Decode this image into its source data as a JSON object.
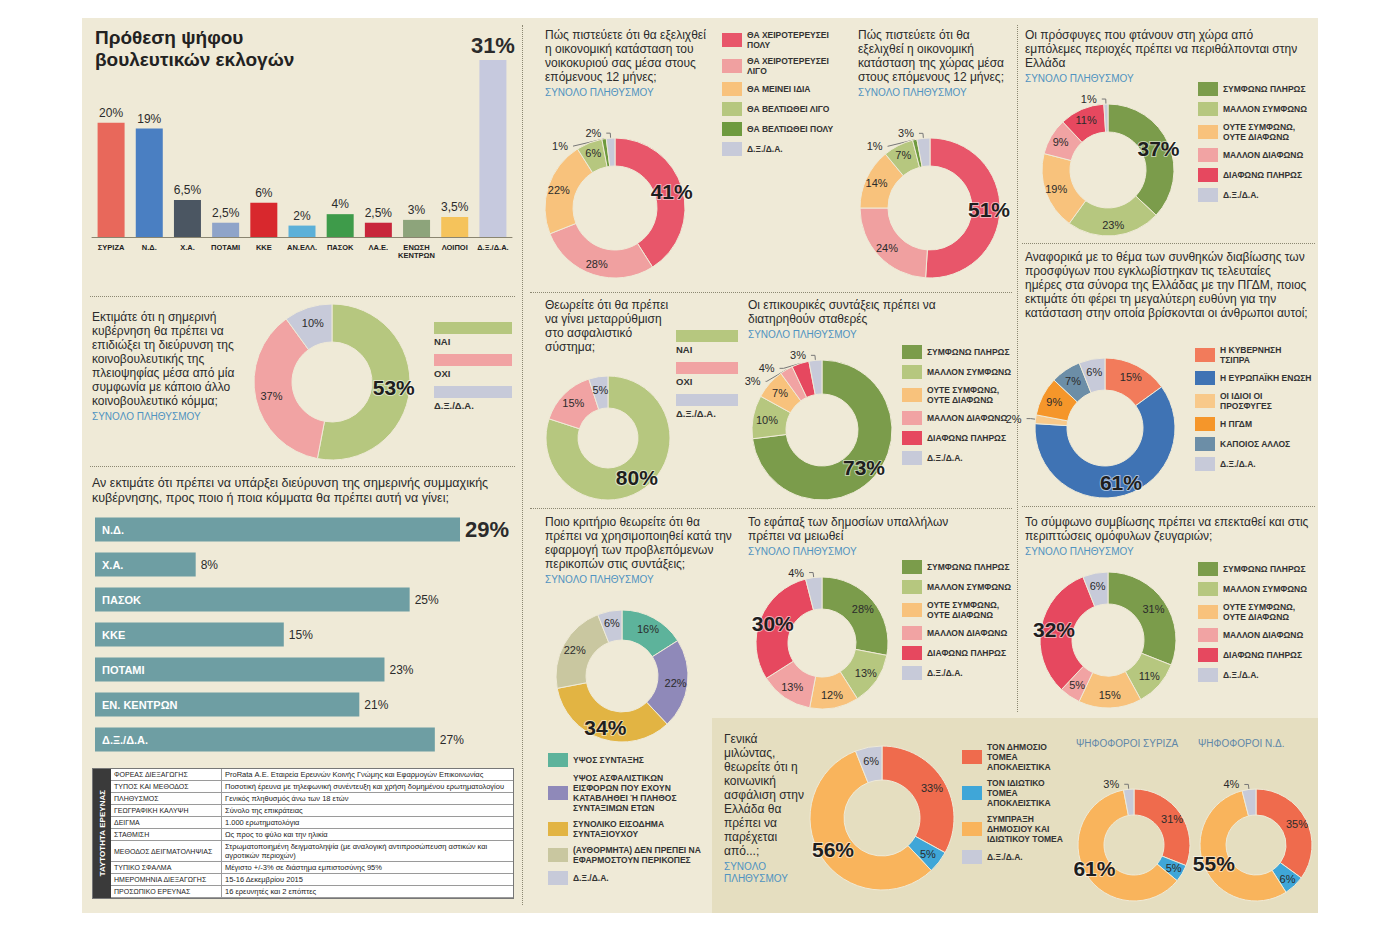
{
  "chart_data": [
    {
      "type": "bar",
      "title": "Πρόθεση ψήφου βουλευτικών εκλογών",
      "categories": [
        "ΣΥΡΙΖΑ",
        "Ν.Δ.",
        "Χ.Α.",
        "ΠΟΤΑΜΙ",
        "ΚΚΕ",
        "ΑΝ.ΕΛΛ.",
        "ΠΑΣΟΚ",
        "ΛΑ.Ε.",
        "ΕΝΩΣΗ ΚΕΝΤΡΩΝ",
        "ΛΟΙΠΟΙ",
        "Δ.Ξ./Δ.Α."
      ],
      "values": [
        20,
        19,
        6.5,
        2.5,
        6,
        2,
        4,
        2.5,
        3,
        3.5,
        31
      ],
      "value_labels": [
        "20%",
        "19%",
        "6,5%",
        "2,5%",
        "6%",
        "2%",
        "4%",
        "2,5%",
        "3%",
        "3,5%",
        "31%"
      ],
      "colors": [
        "#e8685b",
        "#4a7fc2",
        "#4b5662",
        "#8fa4c9",
        "#d8282d",
        "#5bb0d8",
        "#3e9b4a",
        "#c8263b",
        "#8da47b",
        "#f5c35b",
        "#c6c9de"
      ],
      "ylim": [
        0,
        31
      ],
      "tick_labels": "x",
      "data_labels": true
    },
    {
      "type": "pie",
      "title": "Εκτιμάτε ότι η σημερινή κυβέρνηση θα πρέπει να επιδιώξει τη διεύρυνση της κοινοβουλευτικής της πλειοψηφίας μέσα από μία συμφωνία με κάποιο άλλο κοινοβουλευτικό κόμμα;",
      "subtitle": "ΣΥΝΟΛΟ ΠΛΗΘΥΣΜΟΥ",
      "categories": [
        "ΝΑΙ",
        "ΟΧΙ",
        "Δ.Ξ./Δ.Α."
      ],
      "values": [
        53,
        37,
        10
      ],
      "value_labels": [
        "53%",
        "37%",
        "10%"
      ],
      "colors": [
        "#b6c77f",
        "#f1a3a3",
        "#c7cad9"
      ],
      "legend": "right",
      "data_labels": true
    },
    {
      "type": "bar",
      "orientation": "horizontal",
      "title": "Αν εκτιμάτε ότι πρέπει να υπάρξει διεύρυνση της σημερινής συμμαχικής κυβέρνησης, προς ποιο ή ποια κόμματα θα πρέπει αυτή να γίνει;",
      "categories": [
        "Ν.Δ.",
        "Χ.Α.",
        "ΠΑΣΟΚ",
        "ΚΚΕ",
        "ΠΟΤΑΜΙ",
        "ΕΝ. ΚΕΝΤΡΩΝ",
        "Δ.Ξ./Δ.Α."
      ],
      "values": [
        29,
        8,
        25,
        15,
        23,
        21,
        27
      ],
      "value_labels": [
        "29%",
        "8%",
        "25%",
        "15%",
        "23%",
        "21%",
        "27%"
      ],
      "color": "#6e9ea3",
      "xlim": [
        0,
        29
      ],
      "tick_labels": "y",
      "data_labels": true
    },
    {
      "type": "pie",
      "categories": [
        "ΘΑ ΧΕΙΡΟΤΕΡΕΥΣΕΙ ΠΟΛΥ",
        "ΘΑ ΧΕΙΡΟΤΕΡΕΥΣΕΙ ΛΙΓΟ",
        "ΘΑ ΜΕΙΝΕΙ ΙΔΙΑ",
        "ΘΑ ΒΕΛΤΙΩΘΕΙ ΛΙΓΟ",
        "ΘΑ ΒΕΛΤΙΩΘΕΙ ΠΟΛΥ",
        "Δ.Ξ./Δ.Α."
      ],
      "colors": [
        "#e8566a",
        "#f0a0a0",
        "#f8c27c",
        "#b6c77f",
        "#6e9a3f",
        "#c7cad9"
      ],
      "legend": "right",
      "data_labels": true,
      "series": [
        {
          "name": "Πώς πιστεύετε ότι θα εξελιχθεί η οικονομική κατάσταση του νοικοκυριού σας μέσα στους επόμενους 12 μήνες;",
          "subtitle": "ΣΥΝΟΛΟ ΠΛΗΘΥΣΜΟΥ",
          "values": [
            41,
            28,
            22,
            6,
            1,
            2
          ],
          "value_labels": [
            "41%",
            "28%",
            "22%",
            "6%",
            "1%",
            "2%"
          ]
        },
        {
          "name": "Πώς πιστεύετε ότι θα εξελιχθεί η οικονομική κατάσταση της χώρας μέσα στους επόμενους 12 μήνες;",
          "subtitle": "ΣΥΝΟΛΟ ΠΛΗΘΥΣΜΟΥ",
          "values": [
            51,
            24,
            14,
            7,
            1,
            3
          ],
          "value_labels": [
            "51%",
            "24%",
            "14%",
            "7%",
            "1%",
            "3%"
          ]
        }
      ]
    },
    {
      "type": "pie",
      "title": "Θεωρείτε ότι θα πρέπει να γίνει μεταρρύθμιση στο ασφαλιστικό σύστημα;",
      "categories": [
        "ΝΑΙ",
        "ΟΧΙ",
        "Δ.Ξ./Δ.Α."
      ],
      "values": [
        80,
        15,
        5
      ],
      "value_labels": [
        "80%",
        "15%",
        "5%"
      ],
      "colors": [
        "#b6c77f",
        "#f1a3a3",
        "#c7cad9"
      ],
      "legend": "right",
      "data_labels": true
    },
    {
      "type": "pie",
      "title": "Οι επικουρικές συντάξεις πρέπει να διατηρηθούν σταθερές",
      "subtitle": "ΣΥΝΟΛΟ ΠΛΗΘΥΣΜΟΥ",
      "categories": [
        "ΣΥΜΦΩΝΩ ΠΛΗΡΩΣ",
        "ΜΑΛΛΟΝ ΣΥΜΦΩΝΩ",
        "ΟΥΤΕ ΣΥΜΦΩΝΩ, ΟΥΤΕ ΔΙΑΦΩΝΩ",
        "ΜΑΛΛΟΝ ΔΙΑΦΩΝΩ",
        "ΔΙΑΦΩΝΩ ΠΛΗΡΩΣ",
        "Δ.Ξ./Δ.Α."
      ],
      "values": [
        73,
        10,
        7,
        3,
        4,
        3
      ],
      "value_labels": [
        "73%",
        "10%",
        "7%",
        "3%",
        "4%",
        "3%"
      ],
      "colors": [
        "#7b9c4b",
        "#b6c77f",
        "#f8c27c",
        "#f1a3a3",
        "#e6485f",
        "#c7cad9"
      ],
      "legend": "right",
      "data_labels": true
    },
    {
      "type": "pie",
      "title": "Ποιο κριτήριο θεωρείτε ότι θα πρέπει να χρησιμοποιηθεί κατά την εφαρμογή των προβλεπόμενων περικοπών στις συντάξεις;",
      "subtitle": "ΣΥΝΟΛΟ ΠΛΗΘΥΣΜΟΥ",
      "categories": [
        "ΥΨΟΣ ΣΥΝΤΑΞΗΣ",
        "ΥΨΟΣ ΑΣΦΑΛΙΣΤΙΚΩΝ ΕΙΣΦΟΡΩΝ ΠΟΥ ΕΧΟΥΝ ΚΑΤΑΒΛΗΘΕΙ Ή ΠΛΗΘΟΣ ΣΥΝΤΑΞΙΜΩΝ ΕΤΩΝ",
        "ΣΥΝΟΛΙΚΟ ΕΙΣΟΔΗΜΑ ΣΥΝΤΑΞΙΟΥΧΟΥ",
        "(ΑΥΘΟΡΜΗΤΑ) ΔΕΝ ΠΡΕΠΕΙ ΝΑ ΕΦΑΡΜΟΣΤΟΥΝ ΠΕΡΙΚΟΠΕΣ",
        "Δ.Ξ./Δ.Α."
      ],
      "values": [
        16,
        22,
        34,
        22,
        6
      ],
      "value_labels": [
        "16%",
        "22%",
        "34%",
        "22%",
        "6%"
      ],
      "colors": [
        "#5db39b",
        "#8f89b9",
        "#e2b443",
        "#c9c7a0",
        "#c7cad9"
      ],
      "legend": "bottom",
      "data_labels": true
    },
    {
      "type": "pie",
      "title": "Το εφάπαξ των δημοσίων υπαλλήλων πρέπει να μειωθεί",
      "subtitle": "ΣΥΝΟΛΟ ΠΛΗΘΥΣΜΟΥ",
      "categories": [
        "ΣΥΜΦΩΝΩ ΠΛΗΡΩΣ",
        "ΜΑΛΛΟΝ ΣΥΜΦΩΝΩ",
        "ΟΥΤΕ ΣΥΜΦΩΝΩ, ΟΥΤΕ ΔΙΑΦΩΝΩ",
        "ΜΑΛΛΟΝ ΔΙΑΦΩΝΩ",
        "ΔΙΑΦΩΝΩ ΠΛΗΡΩΣ",
        "Δ.Ξ./Δ.Α."
      ],
      "values": [
        28,
        13,
        12,
        13,
        30,
        4
      ],
      "value_labels": [
        "28%",
        "13%",
        "12%",
        "13%",
        "30%",
        "4%"
      ],
      "colors": [
        "#7b9c4b",
        "#b6c77f",
        "#f8c27c",
        "#f1a3a3",
        "#e6485f",
        "#c7cad9"
      ],
      "legend": "right",
      "data_labels": true
    },
    {
      "type": "pie",
      "title": "Οι πρόσφυγες που φτάνουν στη χώρα από εμπόλεμες περιοχές πρέπει να περιθάλπονται στην Ελλάδα",
      "subtitle": "ΣΥΝΟΛΟ ΠΛΗΘΥΣΜΟΥ",
      "categories": [
        "ΣΥΜΦΩΝΩ ΠΛΗΡΩΣ",
        "ΜΑΛΛΟΝ ΣΥΜΦΩΝΩ",
        "ΟΥΤΕ ΣΥΜΦΩΝΩ, ΟΥΤΕ ΔΙΑΦΩΝΩ",
        "ΜΑΛΛΟΝ ΔΙΑΦΩΝΩ",
        "ΔΙΑΦΩΝΩ ΠΛΗΡΩΣ",
        "Δ.Ξ./Δ.Α."
      ],
      "values": [
        37,
        23,
        19,
        9,
        11,
        1
      ],
      "value_labels": [
        "37%",
        "23%",
        "19%",
        "9%",
        "11%",
        "1%"
      ],
      "colors": [
        "#7b9c4b",
        "#b6c77f",
        "#f8c27c",
        "#f1a3a3",
        "#e6485f",
        "#c7cad9"
      ],
      "legend": "right",
      "data_labels": true
    },
    {
      "type": "pie",
      "title": "Αναφορικά με το θέμα των συνθηκών διαβίωσης των προσφύγων που εγκλωβίστηκαν τις τελευταίες ημέρες στα σύνορα της Ελλάδας με την ΠΓΔΜ, ποιος εκτιμάτε ότι φέρει τη μεγαλύτερη ευθύνη για την κατάσταση στην οποία βρίσκονται οι άνθρωποι αυτοί;",
      "categories": [
        "Η ΚΥΒΕΡΝΗΣΗ ΤΣΙΠΡΑ",
        "Η ΕΥΡΩΠΑΪΚΗ ΕΝΩΣΗ",
        "ΟΙ ΙΔΙΟΙ ΟΙ ΠΡΟΣΦΥΓΕΣ",
        "Η ΠΓΔΜ",
        "ΚΑΠΟΙΟΣ ΑΛΛΟΣ",
        "Δ.Ξ./Δ.Α."
      ],
      "values": [
        15,
        61,
        2,
        9,
        7,
        6
      ],
      "value_labels": [
        "15%",
        "61%",
        "2%",
        "9%",
        "7%",
        "6%"
      ],
      "colors": [
        "#f27b5b",
        "#3f73b4",
        "#f8c98a",
        "#f5962a",
        "#6c8ea7",
        "#c7cad9"
      ],
      "legend": "right",
      "data_labels": true
    },
    {
      "type": "pie",
      "title": "Το σύμφωνο συμβίωσης πρέπει να επεκταθεί και στις περιπτώσεις ομόφυλων ζευγαριών;",
      "subtitle": "ΣΥΝΟΛΟ ΠΛΗΘΥΣΜΟΥ",
      "categories": [
        "ΣΥΜΦΩΝΩ ΠΛΗΡΩΣ",
        "ΜΑΛΛΟΝ ΣΥΜΦΩΝΩ",
        "ΟΥΤΕ ΣΥΜΦΩΝΩ, ΟΥΤΕ ΔΙΑΦΩΝΩ",
        "ΜΑΛΛΟΝ ΔΙΑΦΩΝΩ",
        "ΔΙΑΦΩΝΩ ΠΛΗΡΩΣ",
        "Δ.Ξ./Δ.Α."
      ],
      "values": [
        31,
        11,
        15,
        5,
        32,
        6
      ],
      "value_labels": [
        "31%",
        "11%",
        "15%",
        "5%",
        "32%",
        "6%"
      ],
      "colors": [
        "#7b9c4b",
        "#b6c77f",
        "#f8c27c",
        "#f1a3a3",
        "#e6485f",
        "#c7cad9"
      ],
      "legend": "right",
      "data_labels": true
    },
    {
      "type": "pie",
      "title": "Γενικά μιλώντας, θεωρείτε ότι η κοινωνική ασφάλιση στην Ελλάδα θα πρέπει να παρέχεται από...;",
      "categories": [
        "ΤΟΝ ΔΗΜΟΣΙΟ ΤΟΜΕΑ ΑΠΟΚΛΕΙΣΤΙΚΑ",
        "ΤΟΝ ΙΔΙΩΤΙΚΟ ΤΟΜΕΑ ΑΠΟΚΛΕΙΣΤΙΚΑ",
        "ΣΥΜΠΡΑΞΗ ΔΗΜΟΣΙΟΥ ΚΑΙ ΙΔΙΩΤΙΚΟΥ ΤΟΜΕΑ",
        "Δ.Ξ./Δ.Α."
      ],
      "colors": [
        "#ef6b4d",
        "#3fa6d8",
        "#f9b45c",
        "#c7cad9"
      ],
      "legend": "right",
      "data_labels": true,
      "series": [
        {
          "name": "ΣΥΝΟΛΟ ΠΛΗΘΥΣΜΟΥ",
          "values": [
            33,
            5,
            56,
            6
          ],
          "value_labels": [
            "33%",
            "5%",
            "56%",
            "6%"
          ]
        },
        {
          "name": "ΨΗΦΟΦΟΡΟΙ ΣΥΡΙΖΑ",
          "values": [
            31,
            5,
            61,
            3
          ],
          "value_labels": [
            "31%",
            "5%",
            "61%",
            "3%"
          ]
        },
        {
          "name": "ΨΗΦΟΦΟΡΟΙ Ν.Δ.",
          "values": [
            35,
            6,
            55,
            4
          ],
          "value_labels": [
            "35%",
            "6%",
            "55%",
            "4%"
          ]
        }
      ]
    }
  ],
  "table": {
    "title": "ΤΑΥΤΟΤΗΤΑ ΕΡΕΥΝΑΣ",
    "rows": [
      [
        "ΦΟΡΕΑΣ ΔΙΕΞΑΓΩΓΗΣ",
        "ProRata Α.Ε. Εταιρεία Ερευνών Κοινής Γνώμης και Εφαρμογών Επικοινωνίας"
      ],
      [
        "ΤΥΠΟΣ ΚΑΙ ΜΕΘΟΔΟΣ",
        "Ποσοτική έρευνα με τηλεφωνική συνέντευξη και χρήση δομημένου ερωτηματολογίου"
      ],
      [
        "ΠΛΗΘΥΣΜΟΣ",
        "Γενικός πληθυσμός άνω των 18 ετών"
      ],
      [
        "ΓΕΩΓΡΑΦΙΚΗ ΚΑΛΥΨΗ",
        "Σύνολο της επικράτειας"
      ],
      [
        "ΔΕΙΓΜΑ",
        "1.000 ερωτηματολόγια"
      ],
      [
        "ΣΤΑΘΜΙΣΗ",
        "Ως προς το φύλο και την ηλικία"
      ],
      [
        "ΜΕΘΟΔΟΣ ΔΕΙΓΜΑΤΟΛΗΨΙΑΣ",
        "Στρωματοποιημένη δειγματοληψία (με αναλογική αντιπροσώπευση αστικών και αγροτικών περιοχών)"
      ],
      [
        "ΤΥΠΙΚΟ ΣΦΑΛΜΑ",
        "Μέγιστο +/-3% σε διάστημα εμπιστοσύνης 95%"
      ],
      [
        "ΗΜΕΡΟΜΗΝΙΑ ΔΙΕΞΑΓΩΓΗΣ",
        "15-16 Δεκεμβρίου 2015"
      ],
      [
        "ΠΡΟΣΩΠΙΚΟ ΕΡΕΥΝΑΣ",
        "16 ερευνητές και 2 επόπτες"
      ]
    ]
  }
}
